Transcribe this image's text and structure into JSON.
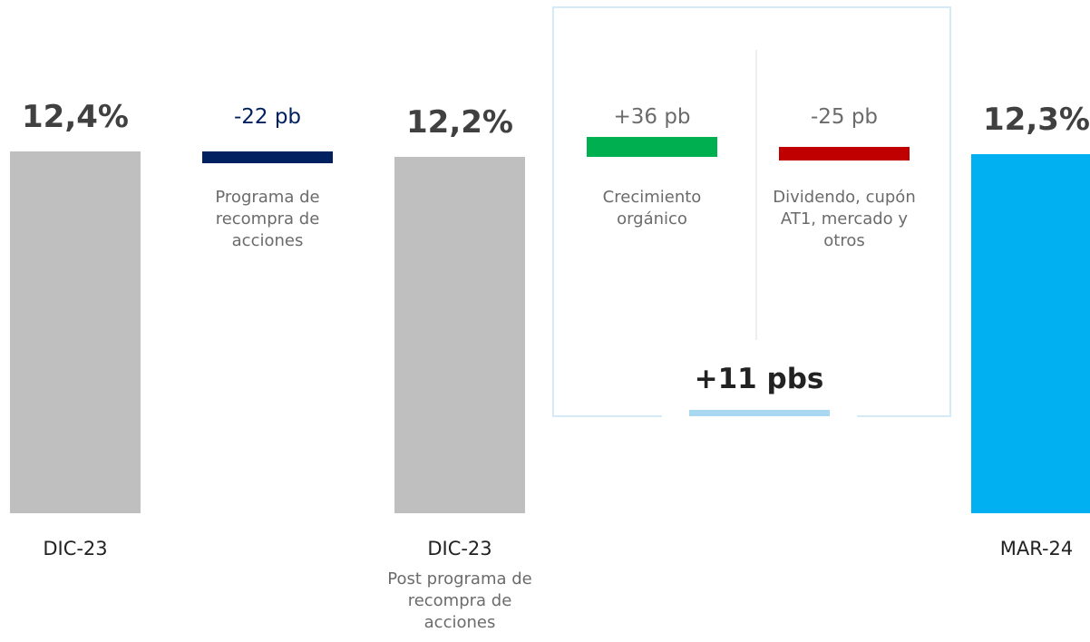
{
  "chart_data": {
    "type": "waterfall",
    "categories": [
      "DIC-23",
      null,
      "DIC-23",
      null,
      null,
      "MAR-24"
    ],
    "measure": [
      "absolute",
      "relative",
      "absolute",
      "relative",
      "relative",
      "absolute"
    ],
    "values": [
      12.4,
      -0.22,
      12.2,
      0.36,
      -0.25,
      12.3
    ],
    "value_labels": [
      "12,4%",
      "-22 pb",
      "12,2%",
      "+36 pb",
      "-25 pb",
      "12,3%"
    ],
    "colors": [
      "#bfbfbf",
      "#002060",
      "#bfbfbf",
      "#00b050",
      "#c00000",
      "#00b0f0"
    ],
    "descriptions": [
      null,
      "Programa de recompra de acciones",
      "Post programa de recompra de acciones",
      "Crecimiento orgánico",
      "Dividendo, cupón AT1, mercado y otros",
      null
    ],
    "group_label": "+11 pbs"
  }
}
